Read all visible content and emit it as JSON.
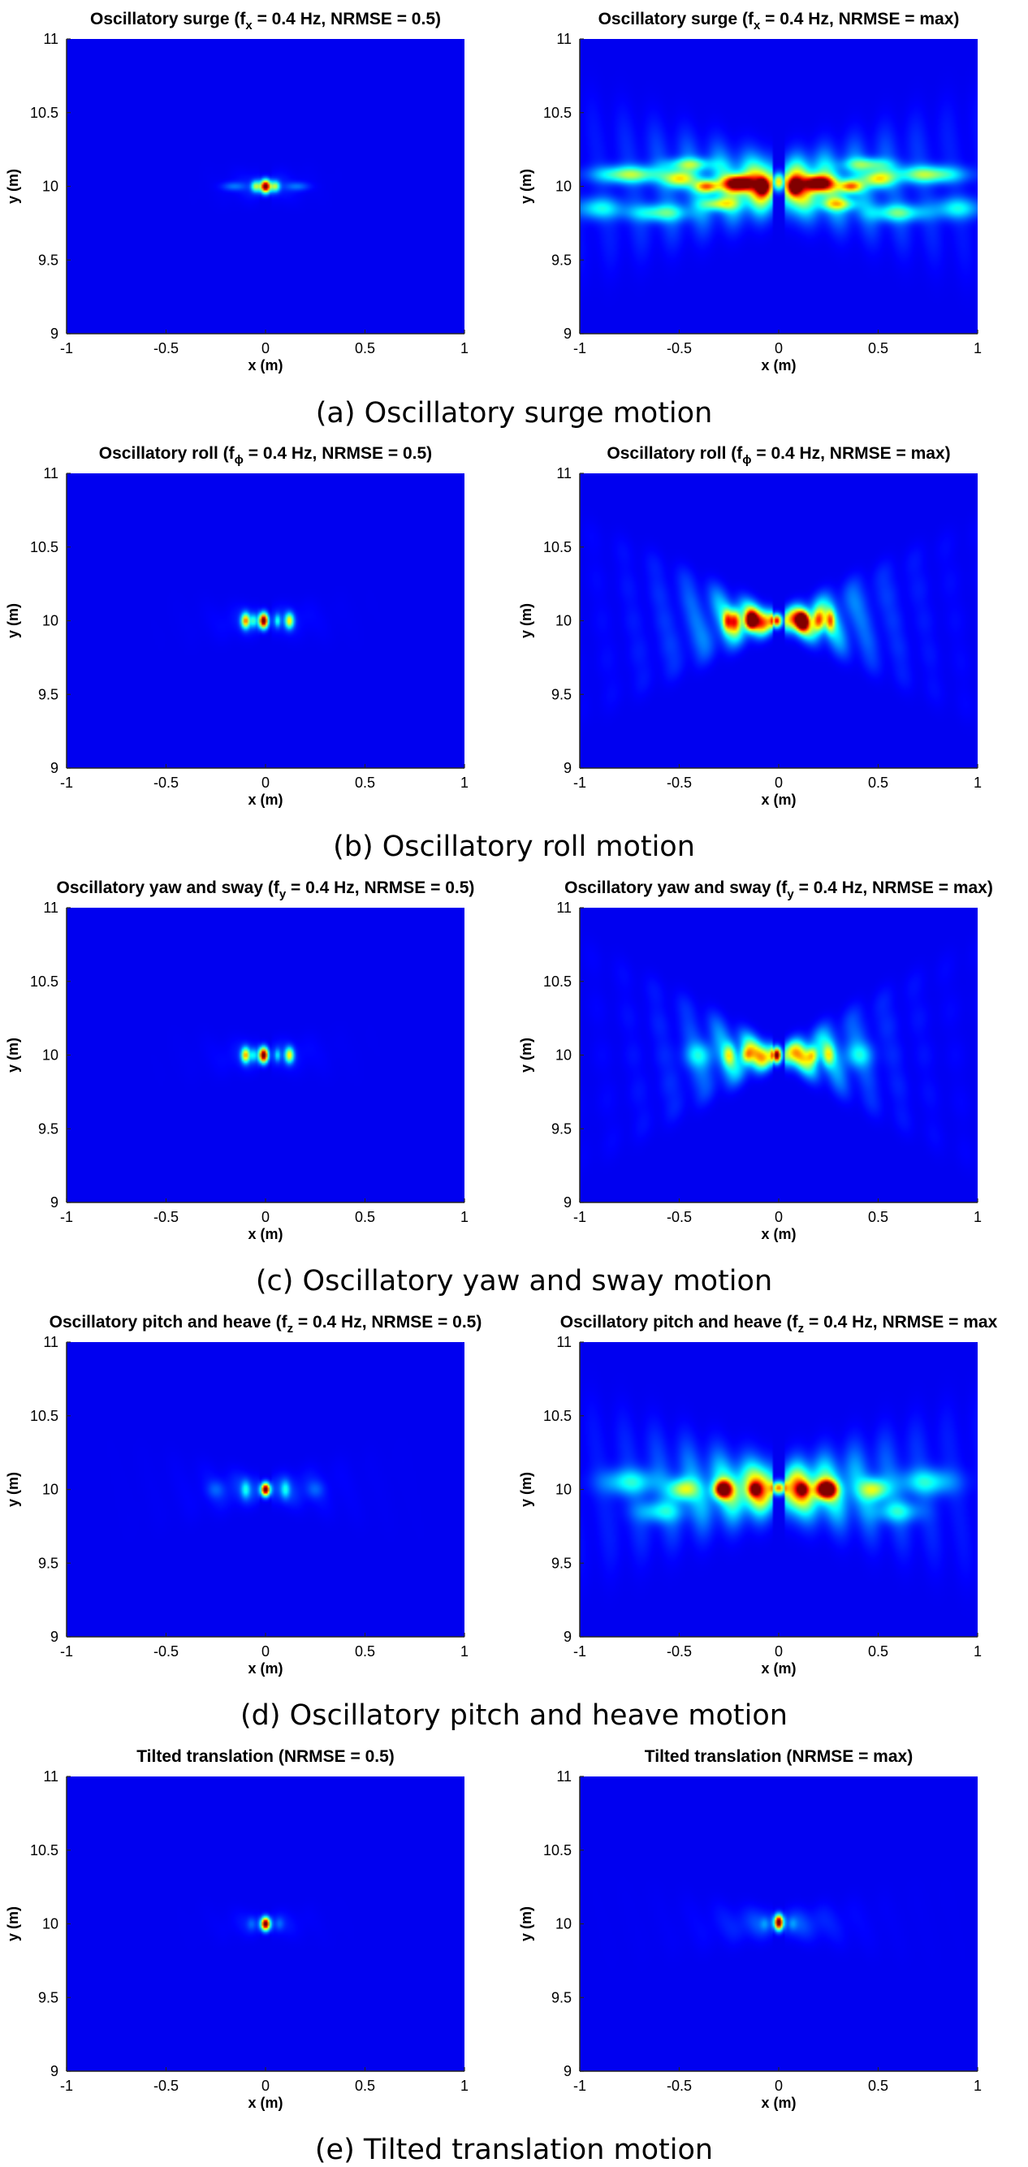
{
  "chart_data": [
    {
      "group": "a",
      "side": "left",
      "type": "heatmap",
      "title": {
        "pre": "Oscillatory surge (f",
        "sub": "x",
        "post": " = 0.4 Hz, NRMSE = 0.5)"
      },
      "xlabel": "x (m)",
      "ylabel": "y (m)",
      "xlim": [
        -1,
        1
      ],
      "ylim": [
        9,
        11
      ],
      "xticks": [
        "-1",
        "-0.5",
        "0",
        "0.5",
        "1"
      ],
      "yticks": [
        "9",
        "9.5",
        "10",
        "10.5",
        "11"
      ],
      "colormap": "jet",
      "blobs": [
        [
          0,
          10,
          0.018,
          0.03,
          1.0
        ],
        [
          -0.05,
          10,
          0.015,
          0.025,
          0.4
        ],
        [
          0.05,
          10,
          0.015,
          0.025,
          0.4
        ],
        [
          -0.16,
          10,
          0.04,
          0.02,
          0.12
        ],
        [
          0.16,
          10,
          0.04,
          0.02,
          0.12
        ]
      ],
      "beams": [
        [
          -0.35,
          0.35,
          0.06,
          0.08,
          0.05
        ]
      ]
    },
    {
      "group": "a",
      "side": "right",
      "type": "heatmap",
      "title": {
        "pre": "Oscillatory surge (f",
        "sub": "x",
        "post": " = 0.4 Hz, NRMSE = max)"
      },
      "xlabel": "x (m)",
      "ylabel": "y (m)",
      "xlim": [
        -1,
        1
      ],
      "ylim": [
        9,
        11
      ],
      "xticks": [
        "-1",
        "-0.5",
        "0",
        "0.5",
        "1"
      ],
      "yticks": [
        "9",
        "9.5",
        "10",
        "10.5",
        "11"
      ],
      "colormap": "jet",
      "blobs": [
        [
          -0.2,
          10.02,
          0.05,
          0.035,
          0.9
        ],
        [
          0.2,
          10.02,
          0.05,
          0.035,
          0.85
        ],
        [
          -0.08,
          10,
          0.02,
          0.035,
          0.7
        ],
        [
          0.08,
          10,
          0.02,
          0.035,
          0.7
        ],
        [
          0,
          10.03,
          0.02,
          0.04,
          0.55
        ],
        [
          -0.36,
          10,
          0.04,
          0.03,
          0.55
        ],
        [
          0.36,
          10,
          0.04,
          0.03,
          0.55
        ],
        [
          -0.5,
          10.05,
          0.05,
          0.04,
          0.45
        ],
        [
          0.5,
          10.05,
          0.05,
          0.04,
          0.45
        ],
        [
          -0.75,
          10.08,
          0.12,
          0.04,
          0.4
        ],
        [
          0.75,
          10.08,
          0.12,
          0.04,
          0.4
        ],
        [
          -0.3,
          9.88,
          0.06,
          0.03,
          0.35
        ],
        [
          0.3,
          9.88,
          0.06,
          0.03,
          0.35
        ],
        [
          -0.6,
          9.82,
          0.1,
          0.04,
          0.3
        ],
        [
          0.6,
          9.82,
          0.1,
          0.04,
          0.3
        ],
        [
          -0.45,
          10.15,
          0.08,
          0.03,
          0.3
        ],
        [
          0.45,
          10.15,
          0.08,
          0.03,
          0.3
        ],
        [
          -0.9,
          9.85,
          0.08,
          0.05,
          0.25
        ],
        [
          0.9,
          9.85,
          0.08,
          0.05,
          0.25
        ]
      ],
      "beams": [
        [
          -0.5,
          0.5,
          0.12,
          0.45,
          0.18
        ],
        [
          -0.3,
          0.3,
          0.1,
          0.1,
          0.25
        ]
      ]
    },
    {
      "group": "b",
      "side": "left",
      "type": "heatmap",
      "title": {
        "pre": "Oscillatory roll (f",
        "sub": "ϕ",
        "post": " = 0.4 Hz, NRMSE = 0.5)"
      },
      "xlabel": "x (m)",
      "ylabel": "y (m)",
      "xlim": [
        -1,
        1
      ],
      "ylim": [
        9,
        11
      ],
      "xticks": [
        "-1",
        "-0.5",
        "0",
        "0.5",
        "1"
      ],
      "yticks": [
        "9",
        "9.5",
        "10",
        "10.5",
        "11"
      ],
      "colormap": "jet",
      "blobs": [
        [
          -0.01,
          10,
          0.016,
          0.035,
          1.0
        ],
        [
          -0.1,
          10,
          0.015,
          0.035,
          0.6
        ],
        [
          0.12,
          10,
          0.015,
          0.035,
          0.5
        ],
        [
          -0.06,
          10,
          0.01,
          0.03,
          0.25
        ],
        [
          0.06,
          10,
          0.01,
          0.03,
          0.25
        ]
      ],
      "beams": [
        [
          -0.3,
          0.35,
          0.06,
          0.12,
          0.05
        ]
      ]
    },
    {
      "group": "b",
      "side": "right",
      "type": "heatmap",
      "title": {
        "pre": "Oscillatory roll (f",
        "sub": "ϕ",
        "post": " = 0.4 Hz, NRMSE = max)"
      },
      "xlabel": "x (m)",
      "ylabel": "y (m)",
      "xlim": [
        -1,
        1
      ],
      "ylim": [
        9,
        11
      ],
      "xticks": [
        "-1",
        "-0.5",
        "0",
        "0.5",
        "1"
      ],
      "yticks": [
        "9",
        "9.5",
        "10",
        "10.5",
        "11"
      ],
      "colormap": "jet",
      "blobs": [
        [
          -0.01,
          10,
          0.018,
          0.03,
          0.8
        ],
        [
          -0.14,
          10,
          0.02,
          0.04,
          0.8
        ],
        [
          0.12,
          10,
          0.02,
          0.04,
          0.8
        ],
        [
          -0.22,
          10,
          0.02,
          0.05,
          0.5
        ],
        [
          0.2,
          10,
          0.02,
          0.05,
          0.5
        ],
        [
          -0.26,
          10,
          0.015,
          0.05,
          0.4
        ],
        [
          0.26,
          10,
          0.015,
          0.05,
          0.4
        ]
      ],
      "beams": [
        [
          -0.6,
          0.6,
          0.05,
          0.38,
          0.2
        ],
        [
          -0.4,
          0.4,
          0.05,
          0.2,
          0.22
        ]
      ]
    },
    {
      "group": "c",
      "side": "left",
      "type": "heatmap",
      "title": {
        "pre": "Oscillatory yaw and sway (f",
        "sub": "y",
        "post": " = 0.4 Hz, NRMSE = 0.5)"
      },
      "xlabel": "x (m)",
      "ylabel": "y (m)",
      "xlim": [
        -1,
        1
      ],
      "ylim": [
        9,
        11
      ],
      "xticks": [
        "-1",
        "-0.5",
        "0",
        "0.5",
        "1"
      ],
      "yticks": [
        "9",
        "9.5",
        "10",
        "10.5",
        "11"
      ],
      "colormap": "jet",
      "blobs": [
        [
          -0.01,
          10,
          0.016,
          0.035,
          1.0
        ],
        [
          -0.1,
          10,
          0.015,
          0.035,
          0.55
        ],
        [
          0.12,
          10,
          0.015,
          0.035,
          0.5
        ],
        [
          -0.06,
          10,
          0.01,
          0.03,
          0.2
        ],
        [
          0.06,
          10,
          0.01,
          0.03,
          0.2
        ]
      ],
      "beams": [
        [
          -0.3,
          0.35,
          0.06,
          0.12,
          0.05
        ]
      ]
    },
    {
      "group": "c",
      "side": "right",
      "type": "heatmap",
      "title": {
        "pre": "Oscillatory yaw and sway (f",
        "sub": "y",
        "post": " = 0.4 Hz, NRMSE = max)"
      },
      "xlabel": "x (m)",
      "ylabel": "y (m)",
      "xlim": [
        -1,
        1
      ],
      "ylim": [
        9,
        11
      ],
      "xticks": [
        "-1",
        "-0.5",
        "0",
        "0.5",
        "1"
      ],
      "yticks": [
        "9",
        "9.5",
        "10",
        "10.5",
        "11"
      ],
      "colormap": "jet",
      "blobs": [
        [
          -0.01,
          10,
          0.016,
          0.035,
          1.0
        ],
        [
          -0.16,
          10,
          0.02,
          0.04,
          0.35
        ],
        [
          0.17,
          10,
          0.02,
          0.04,
          0.35
        ],
        [
          -0.25,
          10,
          0.02,
          0.05,
          0.3
        ],
        [
          0.25,
          10,
          0.02,
          0.05,
          0.3
        ],
        [
          -0.4,
          10,
          0.05,
          0.06,
          0.2
        ],
        [
          0.4,
          10,
          0.05,
          0.06,
          0.2
        ]
      ],
      "beams": [
        [
          -0.7,
          0.7,
          0.05,
          0.38,
          0.17
        ],
        [
          -0.5,
          0.5,
          0.05,
          0.2,
          0.2
        ]
      ]
    },
    {
      "group": "d",
      "side": "left",
      "type": "heatmap",
      "title": {
        "pre": "Oscillatory pitch and heave (f",
        "sub": "z",
        "post": " = 0.4 Hz, NRMSE = 0.5)"
      },
      "xlabel": "x (m)",
      "ylabel": "y (m)",
      "xlim": [
        -1,
        1
      ],
      "ylim": [
        9,
        11
      ],
      "xticks": [
        "-1",
        "-0.5",
        "0",
        "0.5",
        "1"
      ],
      "yticks": [
        "9",
        "9.5",
        "10",
        "10.5",
        "11"
      ],
      "colormap": "jet",
      "blobs": [
        [
          0,
          10,
          0.016,
          0.03,
          1.0
        ],
        [
          -0.1,
          10,
          0.015,
          0.04,
          0.2
        ],
        [
          0.1,
          10,
          0.015,
          0.04,
          0.2
        ],
        [
          -0.25,
          10,
          0.03,
          0.04,
          0.08
        ],
        [
          0.25,
          10,
          0.03,
          0.04,
          0.08
        ]
      ],
      "beams": [
        [
          -0.4,
          0.4,
          0.06,
          0.18,
          0.06
        ]
      ]
    },
    {
      "group": "d",
      "side": "right",
      "type": "heatmap",
      "title": {
        "pre": "Oscillatory pitch and heave (f",
        "sub": "z",
        "post": " = 0.4 Hz, NRMSE = max"
      },
      "xlabel": "x (m)",
      "ylabel": "y (m)",
      "xlim": [
        -1,
        1
      ],
      "ylim": [
        9,
        11
      ],
      "xticks": [
        "-1",
        "-0.5",
        "0",
        "0.5",
        "1"
      ],
      "yticks": [
        "9",
        "9.5",
        "10",
        "10.5",
        "11"
      ],
      "colormap": "jet",
      "blobs": [
        [
          -0.28,
          10,
          0.03,
          0.04,
          0.9
        ],
        [
          0.24,
          10,
          0.035,
          0.04,
          0.95
        ],
        [
          0,
          10.01,
          0.025,
          0.03,
          0.65
        ],
        [
          -0.12,
          10,
          0.02,
          0.03,
          0.5
        ],
        [
          0.12,
          10,
          0.02,
          0.03,
          0.45
        ],
        [
          -0.48,
          10,
          0.05,
          0.05,
          0.4
        ],
        [
          0.48,
          10,
          0.05,
          0.05,
          0.4
        ],
        [
          -0.75,
          10.05,
          0.1,
          0.06,
          0.25
        ],
        [
          0.75,
          10.05,
          0.1,
          0.06,
          0.25
        ],
        [
          -0.6,
          9.85,
          0.08,
          0.05,
          0.22
        ],
        [
          0.6,
          9.85,
          0.08,
          0.05,
          0.22
        ]
      ],
      "beams": [
        [
          -0.5,
          0.5,
          0.12,
          0.45,
          0.17
        ],
        [
          -0.3,
          0.3,
          0.09,
          0.15,
          0.2
        ]
      ]
    },
    {
      "group": "e",
      "side": "left",
      "type": "heatmap",
      "title": {
        "pre": "Tilted translation (NRMSE = 0.5)",
        "sub": "",
        "post": ""
      },
      "xlabel": "x (m)",
      "ylabel": "y (m)",
      "xlim": [
        -1,
        1
      ],
      "ylim": [
        9,
        11
      ],
      "xticks": [
        "-1",
        "-0.5",
        "0",
        "0.5",
        "1"
      ],
      "yticks": [
        "9",
        "9.5",
        "10",
        "10.5",
        "11"
      ],
      "colormap": "jet",
      "blobs": [
        [
          0,
          10,
          0.016,
          0.03,
          1.0
        ],
        [
          -0.07,
          10,
          0.015,
          0.03,
          0.08
        ],
        [
          0.07,
          10,
          0.015,
          0.03,
          0.08
        ]
      ],
      "beams": [
        [
          -0.35,
          0.35,
          0.05,
          0.1,
          0.04
        ]
      ]
    },
    {
      "group": "e",
      "side": "right",
      "type": "heatmap",
      "title": {
        "pre": "Tilted translation (NRMSE = max)",
        "sub": "",
        "post": ""
      },
      "xlabel": "x (m)",
      "ylabel": "y (m)",
      "xlim": [
        -1,
        1
      ],
      "ylim": [
        9,
        11
      ],
      "xticks": [
        "-1",
        "-0.5",
        "0",
        "0.5",
        "1"
      ],
      "yticks": [
        "9",
        "9.5",
        "10",
        "10.5",
        "11"
      ],
      "colormap": "jet",
      "blobs": [
        [
          0,
          10.01,
          0.016,
          0.035,
          1.0
        ],
        [
          -0.07,
          10,
          0.015,
          0.03,
          0.08
        ],
        [
          0.07,
          10,
          0.015,
          0.03,
          0.08
        ]
      ],
      "beams": [
        [
          -0.3,
          0.3,
          0.06,
          0.2,
          0.06
        ]
      ]
    }
  ],
  "captions": [
    "(a) Oscillatory surge motion",
    "(b) Oscillatory roll motion",
    "(c) Oscillatory yaw and sway motion",
    "(d) Oscillatory pitch and heave motion",
    "(e) Tilted translation motion"
  ],
  "colors": {
    "background": "#00008F",
    "axis": "#262626"
  }
}
